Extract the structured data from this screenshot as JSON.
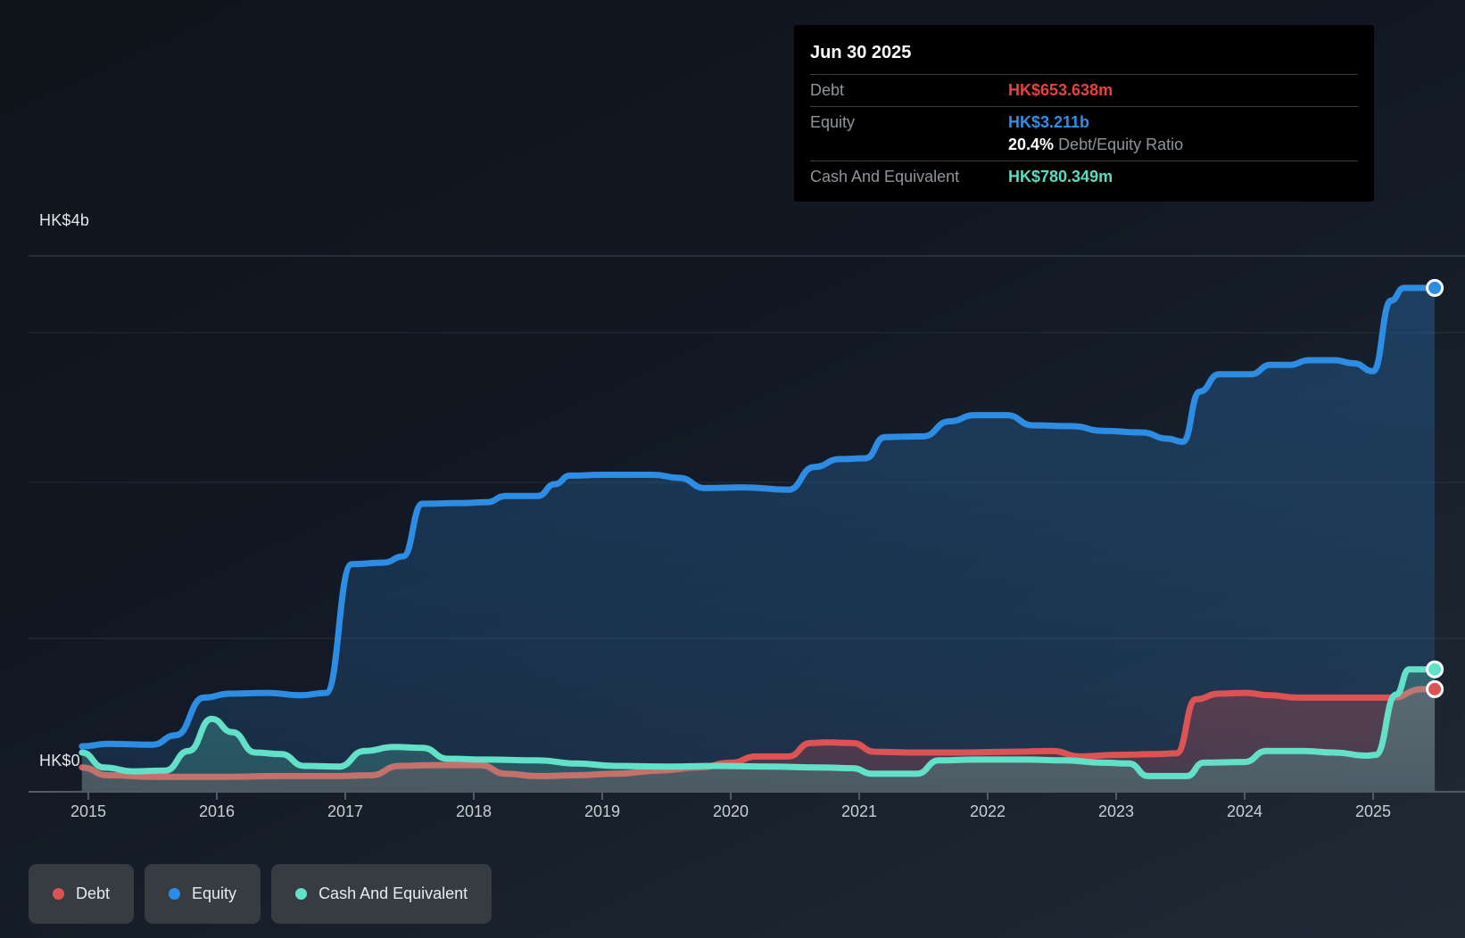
{
  "tooltip": {
    "date": "Jun 30 2025",
    "rows": {
      "debt": {
        "label": "Debt",
        "value": "HK$653.638m"
      },
      "equity": {
        "label": "Equity",
        "value": "HK$3.211b"
      },
      "ratio": {
        "value": "20.4%",
        "label": "Debt/Equity Ratio"
      },
      "cash": {
        "label": "Cash And Equivalent",
        "value": "HK$780.349m"
      }
    }
  },
  "axes": {
    "y_top_label": "HK$4b",
    "y_zero_label": "HK$0",
    "x_labels": [
      "2015",
      "2016",
      "2017",
      "2018",
      "2019",
      "2020",
      "2021",
      "2022",
      "2023",
      "2024",
      "2025"
    ]
  },
  "legend": {
    "items": [
      {
        "key": "debt",
        "label": "Debt"
      },
      {
        "key": "equity",
        "label": "Equity"
      },
      {
        "key": "cash",
        "label": "Cash And Equivalent"
      }
    ]
  },
  "colors": {
    "debt": "#dd5353",
    "equity": "#2d8ce4",
    "cash": "#63e1c8",
    "debt_value_text": "#e8423d",
    "equity_value_text": "#2f8fe8",
    "cash_value_text": "#5adcc0"
  },
  "chart_data": {
    "type": "area",
    "unit": "HK$ billions",
    "ylim": [
      0,
      4
    ],
    "x_range": [
      2014.95,
      2025.48
    ],
    "x_tick_years": [
      2015,
      2016,
      2017,
      2018,
      2019,
      2020,
      2021,
      2022,
      2023,
      2024,
      2025
    ],
    "y_gridline_values_b": [
      3.5,
      3,
      2,
      1
    ],
    "legend_position": "bottom-left",
    "series": [
      {
        "key": "equity",
        "name": "Equity",
        "end_value_b": 3.211,
        "end_label": "HK$3.211b",
        "points": [
          [
            2014.95,
            0.29
          ],
          [
            2015.15,
            0.305
          ],
          [
            2015.5,
            0.3
          ],
          [
            2015.68,
            0.36
          ],
          [
            2015.9,
            0.6
          ],
          [
            2016.1,
            0.625
          ],
          [
            2016.4,
            0.63
          ],
          [
            2016.65,
            0.615
          ],
          [
            2016.85,
            0.63
          ],
          [
            2017.05,
            1.45
          ],
          [
            2017.3,
            1.46
          ],
          [
            2017.45,
            1.5
          ],
          [
            2017.6,
            1.835
          ],
          [
            2017.9,
            1.84
          ],
          [
            2018.1,
            1.845
          ],
          [
            2018.25,
            1.885
          ],
          [
            2018.5,
            1.885
          ],
          [
            2018.63,
            1.96
          ],
          [
            2018.75,
            2.015
          ],
          [
            2019.0,
            2.02
          ],
          [
            2019.4,
            2.02
          ],
          [
            2019.6,
            2.0
          ],
          [
            2019.8,
            1.935
          ],
          [
            2020.1,
            1.94
          ],
          [
            2020.45,
            1.925
          ],
          [
            2020.65,
            2.07
          ],
          [
            2020.85,
            2.12
          ],
          [
            2021.05,
            2.125
          ],
          [
            2021.2,
            2.26
          ],
          [
            2021.5,
            2.265
          ],
          [
            2021.7,
            2.36
          ],
          [
            2021.9,
            2.4
          ],
          [
            2022.15,
            2.4
          ],
          [
            2022.35,
            2.335
          ],
          [
            2022.65,
            2.33
          ],
          [
            2022.9,
            2.3
          ],
          [
            2023.2,
            2.29
          ],
          [
            2023.4,
            2.25
          ],
          [
            2023.52,
            2.23
          ],
          [
            2023.65,
            2.55
          ],
          [
            2023.8,
            2.66
          ],
          [
            2024.05,
            2.66
          ],
          [
            2024.2,
            2.72
          ],
          [
            2024.35,
            2.72
          ],
          [
            2024.5,
            2.75
          ],
          [
            2024.7,
            2.75
          ],
          [
            2024.85,
            2.73
          ],
          [
            2025.0,
            2.68
          ],
          [
            2025.14,
            3.13
          ],
          [
            2025.24,
            3.211
          ],
          [
            2025.48,
            3.211
          ]
        ]
      },
      {
        "key": "debt",
        "name": "Debt",
        "end_value_b": 0.653638,
        "end_label": "HK$653.638m",
        "points": [
          [
            2014.95,
            0.155
          ],
          [
            2015.15,
            0.105
          ],
          [
            2015.5,
            0.095
          ],
          [
            2016.0,
            0.095
          ],
          [
            2016.5,
            0.1
          ],
          [
            2016.9,
            0.1
          ],
          [
            2017.2,
            0.105
          ],
          [
            2017.42,
            0.165
          ],
          [
            2017.7,
            0.17
          ],
          [
            2018.05,
            0.17
          ],
          [
            2018.25,
            0.115
          ],
          [
            2018.5,
            0.1
          ],
          [
            2018.8,
            0.105
          ],
          [
            2019.1,
            0.115
          ],
          [
            2019.45,
            0.135
          ],
          [
            2019.75,
            0.155
          ],
          [
            2020.0,
            0.185
          ],
          [
            2020.2,
            0.225
          ],
          [
            2020.45,
            0.225
          ],
          [
            2020.62,
            0.31
          ],
          [
            2020.75,
            0.315
          ],
          [
            2020.95,
            0.31
          ],
          [
            2021.12,
            0.255
          ],
          [
            2021.4,
            0.25
          ],
          [
            2021.8,
            0.25
          ],
          [
            2022.2,
            0.255
          ],
          [
            2022.5,
            0.26
          ],
          [
            2022.72,
            0.225
          ],
          [
            2023.0,
            0.235
          ],
          [
            2023.3,
            0.24
          ],
          [
            2023.47,
            0.245
          ],
          [
            2023.62,
            0.59
          ],
          [
            2023.8,
            0.625
          ],
          [
            2024.0,
            0.63
          ],
          [
            2024.2,
            0.615
          ],
          [
            2024.4,
            0.6
          ],
          [
            2024.7,
            0.6
          ],
          [
            2025.0,
            0.6
          ],
          [
            2025.15,
            0.6
          ],
          [
            2025.38,
            0.654
          ],
          [
            2025.48,
            0.654
          ]
        ]
      },
      {
        "key": "cash",
        "name": "Cash And Equivalent",
        "end_value_b": 0.780349,
        "end_label": "HK$780.349m",
        "points": [
          [
            2014.95,
            0.25
          ],
          [
            2015.12,
            0.155
          ],
          [
            2015.35,
            0.13
          ],
          [
            2015.6,
            0.135
          ],
          [
            2015.78,
            0.26
          ],
          [
            2015.96,
            0.465
          ],
          [
            2016.12,
            0.38
          ],
          [
            2016.3,
            0.25
          ],
          [
            2016.5,
            0.24
          ],
          [
            2016.68,
            0.165
          ],
          [
            2016.95,
            0.16
          ],
          [
            2017.15,
            0.26
          ],
          [
            2017.38,
            0.285
          ],
          [
            2017.6,
            0.28
          ],
          [
            2017.8,
            0.21
          ],
          [
            2018.1,
            0.205
          ],
          [
            2018.5,
            0.2
          ],
          [
            2018.8,
            0.18
          ],
          [
            2019.1,
            0.165
          ],
          [
            2019.5,
            0.16
          ],
          [
            2019.9,
            0.165
          ],
          [
            2020.3,
            0.16
          ],
          [
            2020.7,
            0.155
          ],
          [
            2020.95,
            0.15
          ],
          [
            2021.1,
            0.115
          ],
          [
            2021.45,
            0.115
          ],
          [
            2021.62,
            0.2
          ],
          [
            2021.9,
            0.205
          ],
          [
            2022.3,
            0.205
          ],
          [
            2022.6,
            0.2
          ],
          [
            2022.9,
            0.185
          ],
          [
            2023.1,
            0.18
          ],
          [
            2023.25,
            0.1
          ],
          [
            2023.55,
            0.1
          ],
          [
            2023.68,
            0.185
          ],
          [
            2024.0,
            0.19
          ],
          [
            2024.17,
            0.26
          ],
          [
            2024.45,
            0.26
          ],
          [
            2024.7,
            0.25
          ],
          [
            2024.95,
            0.23
          ],
          [
            2025.02,
            0.235
          ],
          [
            2025.18,
            0.62
          ],
          [
            2025.28,
            0.78
          ],
          [
            2025.48,
            0.78
          ]
        ]
      }
    ]
  }
}
